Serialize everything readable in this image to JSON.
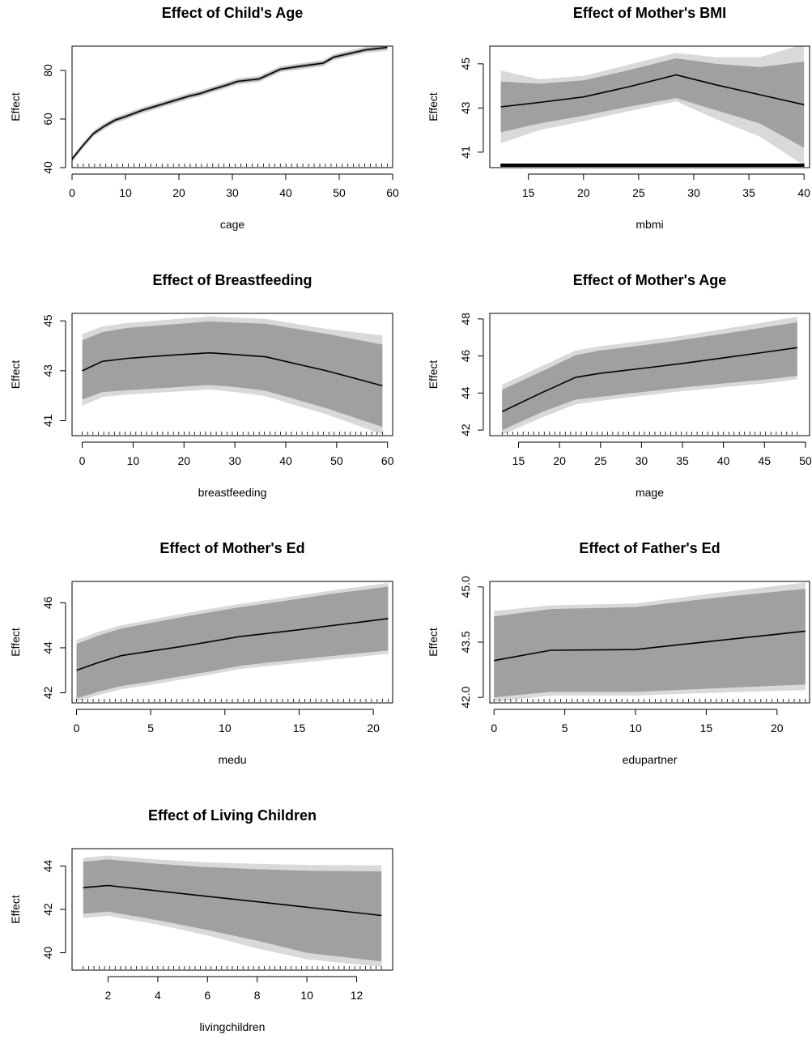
{
  "figure": {
    "colors": {
      "outer_band": "#d9d9d9",
      "inner_band": "#a0a0a0",
      "line": "#000000"
    }
  },
  "chart_data": [
    {
      "type": "line",
      "title": "Effect of Child's Age",
      "xlabel": "cage",
      "ylabel": "Effect",
      "xlim": [
        0,
        60
      ],
      "ylim": [
        40,
        90
      ],
      "xticks": [
        0,
        10,
        20,
        30,
        40,
        50,
        60
      ],
      "yticks": [
        40,
        60,
        80
      ],
      "x": [
        0,
        2,
        4,
        6,
        8,
        10,
        13,
        16,
        19,
        22,
        24,
        26,
        29,
        31,
        35,
        39,
        43,
        47,
        49,
        52,
        55,
        59
      ],
      "y": [
        43.5,
        49,
        54,
        57,
        59.5,
        61,
        63.5,
        65.5,
        67.5,
        69.5,
        70.5,
        72,
        74,
        75.5,
        76.5,
        80.5,
        81.8,
        83,
        85.5,
        87,
        88.5,
        89.5
      ],
      "band_inner": {
        "lower": [
          42.8,
          48.3,
          53.3,
          56.3,
          58.8,
          60.3,
          62.8,
          64.8,
          66.8,
          68.8,
          69.8,
          71.3,
          73.3,
          74.8,
          75.8,
          79.8,
          81.1,
          82.3,
          84.8,
          86.3,
          87.8,
          88.7
        ],
        "upper": [
          44.2,
          49.7,
          54.7,
          57.7,
          60.2,
          61.7,
          64.2,
          66.2,
          68.2,
          70.2,
          71.2,
          72.7,
          74.7,
          76.2,
          77.2,
          81.2,
          82.5,
          83.7,
          86.2,
          87.7,
          89.2,
          90.3
        ]
      },
      "band_outer": {
        "lower": [
          42.2,
          47.7,
          52.7,
          55.7,
          58.2,
          59.7,
          62.2,
          64.2,
          66.2,
          68.2,
          69.2,
          70.7,
          72.7,
          74.2,
          75.2,
          79.2,
          80.5,
          81.7,
          84.2,
          85.7,
          87.2,
          88.0
        ],
        "upper": [
          44.8,
          50.3,
          55.3,
          58.3,
          60.8,
          62.3,
          64.8,
          66.8,
          68.8,
          70.8,
          71.8,
          73.3,
          75.3,
          76.8,
          77.8,
          81.8,
          83.1,
          84.3,
          86.8,
          88.3,
          89.8,
          91.0
        ]
      },
      "rug": true
    },
    {
      "type": "line",
      "title": "Effect of Mother's BMI",
      "xlabel": "mbmi",
      "ylabel": "Effect",
      "xlim": [
        11.5,
        40.5
      ],
      "ylim": [
        40.3,
        45.8
      ],
      "xticks": [
        15,
        20,
        25,
        30,
        35,
        40
      ],
      "yticks": [
        41,
        43,
        45
      ],
      "x": [
        12.5,
        16,
        20,
        24,
        28.4,
        32,
        36,
        40
      ],
      "y": [
        43.05,
        43.25,
        43.5,
        43.95,
        44.5,
        44.05,
        43.6,
        43.15
      ],
      "band_inner": {
        "lower": [
          41.9,
          42.3,
          42.65,
          43.05,
          43.45,
          42.9,
          42.3,
          41.2
        ],
        "upper": [
          44.2,
          44.1,
          44.25,
          44.7,
          45.25,
          45.0,
          44.85,
          45.1
        ]
      },
      "band_outer": {
        "lower": [
          41.4,
          42.0,
          42.4,
          42.85,
          43.3,
          42.5,
          41.7,
          40.4
        ],
        "upper": [
          44.7,
          44.3,
          44.45,
          44.95,
          45.5,
          45.3,
          45.3,
          45.9
        ]
      },
      "rug": true
    },
    {
      "type": "line",
      "title": "Effect of Breastfeeding",
      "xlabel": "breastfeeding",
      "ylabel": "Effect",
      "xlim": [
        -2,
        61
      ],
      "ylim": [
        40.4,
        45.3
      ],
      "xticks": [
        0,
        10,
        20,
        30,
        40,
        50,
        60
      ],
      "yticks": [
        41,
        43,
        45
      ],
      "x": [
        0,
        4,
        9,
        17,
        25,
        30,
        36,
        48,
        59
      ],
      "y": [
        43.0,
        43.38,
        43.5,
        43.62,
        43.72,
        43.65,
        43.56,
        43.0,
        42.4
      ],
      "band_inner": {
        "lower": [
          41.85,
          42.15,
          42.22,
          42.32,
          42.43,
          42.35,
          42.2,
          41.5,
          40.75
        ],
        "upper": [
          44.22,
          44.55,
          44.72,
          44.85,
          44.98,
          44.93,
          44.88,
          44.48,
          44.05
        ]
      },
      "band_outer": {
        "lower": [
          41.6,
          41.95,
          42.05,
          42.15,
          42.25,
          42.15,
          41.98,
          41.25,
          40.45
        ],
        "upper": [
          44.47,
          44.78,
          44.92,
          45.05,
          45.18,
          45.13,
          45.08,
          44.68,
          44.42
        ]
      },
      "rug": true
    },
    {
      "type": "line",
      "title": "Effect of Mother's Age",
      "xlabel": "mage",
      "ylabel": "Effect",
      "xlim": [
        11.5,
        50.5
      ],
      "ylim": [
        41.7,
        48.3
      ],
      "xticks": [
        15,
        20,
        25,
        30,
        35,
        40,
        45,
        50
      ],
      "yticks": [
        42,
        44,
        46,
        48
      ],
      "x": [
        13,
        18,
        22,
        25,
        30,
        35,
        40,
        45,
        49
      ],
      "y": [
        43.0,
        44.05,
        44.85,
        45.07,
        45.33,
        45.6,
        45.9,
        46.2,
        46.45
      ],
      "band_inner": {
        "lower": [
          42.0,
          43.0,
          43.65,
          43.8,
          44.05,
          44.3,
          44.52,
          44.72,
          44.93
        ],
        "upper": [
          44.18,
          45.2,
          46.05,
          46.3,
          46.57,
          46.87,
          47.2,
          47.55,
          47.82
        ]
      },
      "band_outer": {
        "lower": [
          41.75,
          42.7,
          43.4,
          43.58,
          43.85,
          44.1,
          44.32,
          44.52,
          44.75
        ],
        "upper": [
          44.45,
          45.5,
          46.3,
          46.53,
          46.8,
          47.1,
          47.45,
          47.82,
          48.12
        ]
      },
      "rug": true
    },
    {
      "type": "line",
      "title": "Effect of Mother's Ed",
      "xlabel": "medu",
      "ylabel": "Effect",
      "xlim": [
        -0.3,
        21.3
      ],
      "ylim": [
        41.55,
        46.95
      ],
      "xticks": [
        0,
        5,
        10,
        15,
        20
      ],
      "yticks": [
        42,
        44,
        46
      ],
      "x": [
        0,
        1.5,
        3,
        5,
        7,
        9,
        11,
        13,
        15,
        17,
        19,
        21
      ],
      "y": [
        43.0,
        43.35,
        43.65,
        43.85,
        44.05,
        44.27,
        44.5,
        44.65,
        44.8,
        44.97,
        45.13,
        45.3
      ],
      "band_inner": {
        "lower": [
          41.75,
          42.05,
          42.3,
          42.5,
          42.73,
          42.95,
          43.2,
          43.35,
          43.48,
          43.62,
          43.75,
          43.88
        ],
        "upper": [
          44.17,
          44.55,
          44.85,
          45.1,
          45.35,
          45.58,
          45.8,
          45.98,
          46.18,
          46.38,
          46.55,
          46.72
        ]
      },
      "band_outer": {
        "lower": [
          41.6,
          41.9,
          42.15,
          42.35,
          42.58,
          42.8,
          43.05,
          43.2,
          43.33,
          43.47,
          43.6,
          43.73
        ],
        "upper": [
          44.35,
          44.72,
          45.0,
          45.25,
          45.5,
          45.73,
          45.95,
          46.13,
          46.33,
          46.53,
          46.7,
          46.88
        ]
      },
      "rug": true
    },
    {
      "type": "line",
      "title": "Effect of Father's Ed",
      "xlabel": "edupartner",
      "ylabel": "Effect",
      "xlim": [
        -0.3,
        22.3
      ],
      "ylim": [
        41.85,
        45.15
      ],
      "xticks": [
        0,
        5,
        10,
        15,
        20
      ],
      "yticks": [
        42.0,
        43.5,
        45.0
      ],
      "x": [
        0,
        4,
        10,
        16,
        22
      ],
      "y": [
        43.0,
        43.28,
        43.3,
        43.55,
        43.8
      ],
      "band_inner": {
        "lower": [
          42.0,
          42.15,
          42.15,
          42.25,
          42.35
        ],
        "upper": [
          44.2,
          44.4,
          44.45,
          44.72,
          44.95
        ]
      },
      "band_outer": {
        "lower": [
          41.88,
          42.05,
          42.05,
          42.13,
          42.2
        ],
        "upper": [
          44.35,
          44.5,
          44.55,
          44.85,
          45.12
        ]
      },
      "rug": true
    },
    {
      "type": "line",
      "title": "Effect of Living Children",
      "xlabel": "livingchildren",
      "ylabel": "Effect",
      "xlim": [
        0.55,
        13.45
      ],
      "ylim": [
        39.2,
        44.8
      ],
      "xticks": [
        2,
        4,
        6,
        8,
        10,
        12
      ],
      "yticks": [
        40,
        42,
        44
      ],
      "x": [
        1,
        2,
        4,
        6,
        8,
        10,
        13
      ],
      "y": [
        43.0,
        43.1,
        42.85,
        42.6,
        42.35,
        42.1,
        41.72
      ],
      "band_inner": {
        "lower": [
          41.8,
          41.9,
          41.5,
          41.05,
          40.55,
          40.0,
          39.6
        ],
        "upper": [
          44.2,
          44.3,
          44.1,
          43.95,
          43.85,
          43.78,
          43.75
        ]
      },
      "band_outer": {
        "lower": [
          41.6,
          41.7,
          41.3,
          40.8,
          40.2,
          39.7,
          39.35
        ],
        "upper": [
          44.38,
          44.48,
          44.3,
          44.17,
          44.1,
          44.05,
          44.03
        ]
      },
      "rug": true
    }
  ]
}
